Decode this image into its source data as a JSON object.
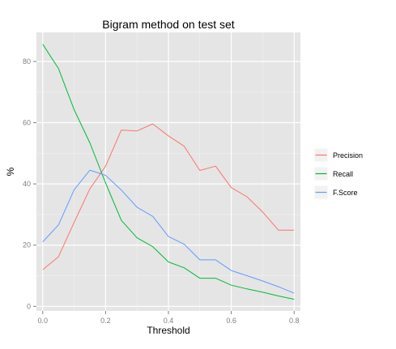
{
  "chart_data": {
    "type": "line",
    "title": "Bigram method on test set",
    "xlabel": "Threshold",
    "ylabel": "%",
    "xlim": [
      -0.02,
      0.82
    ],
    "ylim": [
      -1.5,
      89.5
    ],
    "x_ticks": [
      0.0,
      0.2,
      0.4,
      0.6,
      0.8
    ],
    "x_tick_labels": [
      "0.0",
      "0.2",
      "0.4",
      "0.6",
      "0.8"
    ],
    "y_ticks": [
      0,
      20,
      40,
      60,
      80
    ],
    "y_tick_labels": [
      "0",
      "20",
      "40",
      "60",
      "80"
    ],
    "grid": true,
    "legend_position": "right",
    "x": [
      0.0,
      0.05,
      0.1,
      0.15,
      0.2,
      0.25,
      0.3,
      0.35,
      0.4,
      0.45,
      0.5,
      0.55,
      0.6,
      0.65,
      0.7,
      0.75,
      0.8
    ],
    "series": [
      {
        "name": "Precision",
        "color": "#f8766d",
        "values": [
          12.0,
          16.2,
          27.5,
          38.4,
          45.8,
          57.6,
          57.3,
          59.6,
          55.7,
          52.3,
          44.4,
          45.8,
          38.8,
          35.8,
          30.8,
          24.9,
          24.9
        ]
      },
      {
        "name": "Recall",
        "color": "#00ba38",
        "values": [
          85.6,
          77.7,
          64.2,
          53.4,
          40.3,
          28.1,
          22.4,
          19.5,
          14.5,
          12.6,
          9.2,
          9.2,
          6.9,
          5.7,
          4.6,
          3.4,
          2.3
        ]
      },
      {
        "name": "F.Score",
        "color": "#619cff",
        "values": [
          21.1,
          26.6,
          38.1,
          44.5,
          42.8,
          38.0,
          32.4,
          29.4,
          22.8,
          20.3,
          15.2,
          15.2,
          11.7,
          10.0,
          8.3,
          6.4,
          4.3
        ]
      }
    ]
  }
}
